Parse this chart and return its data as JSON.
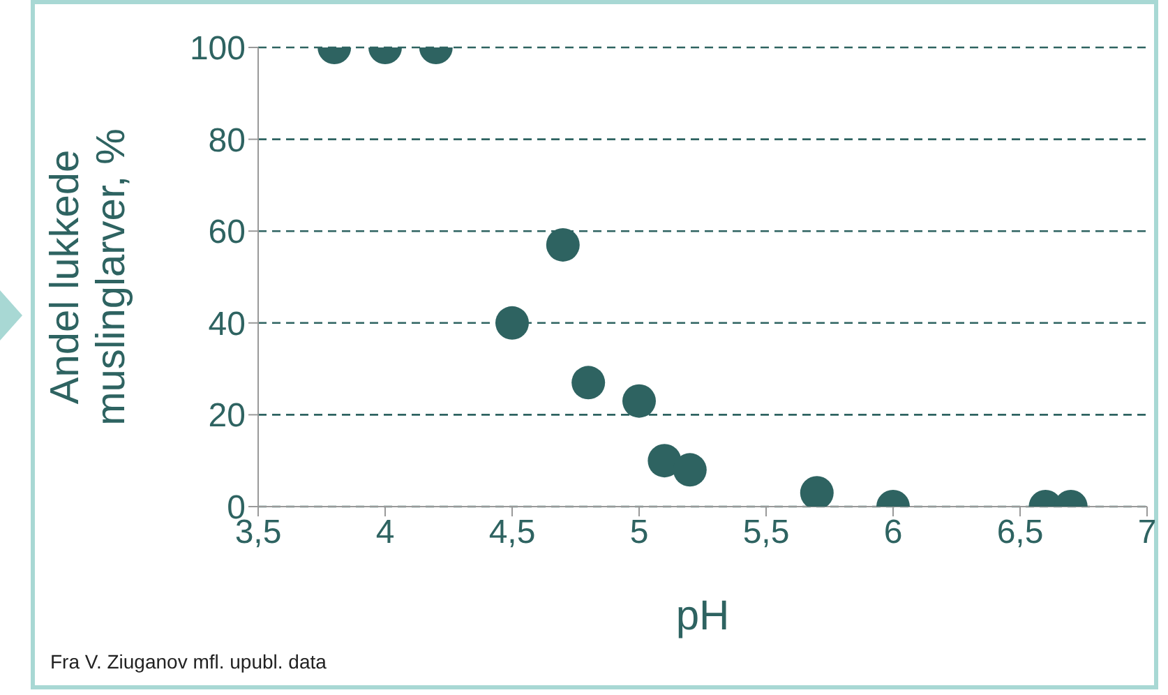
{
  "chart_data": {
    "type": "scatter",
    "xlabel": "pH",
    "ylabel": "Andel lukkede muslinglarver, %",
    "annotations": [
      "Fra V. Ziuganov mfl. upubl. data"
    ],
    "x": [
      3.8,
      4,
      4.2,
      4.5,
      4.7,
      4.8,
      5,
      5.1,
      5.2,
      5.7,
      6,
      6.6,
      6.7
    ],
    "series": [
      {
        "color": "#2e6361",
        "values": [
          100,
          100,
          100,
          40,
          57,
          27,
          23,
          10,
          8,
          3,
          0,
          0,
          0
        ]
      }
    ],
    "xlim": [
      3.5,
      7
    ],
    "xticks": [
      {
        "value": 3.5,
        "label": "3,5"
      },
      4,
      {
        "value": 4.5,
        "label": "4,5"
      },
      5,
      {
        "value": 5.5,
        "label": "5,5"
      },
      6,
      {
        "value": 6.5,
        "label": "6,5"
      },
      7
    ],
    "ylim": [
      0,
      100
    ],
    "yticks": [
      0,
      20,
      40,
      60,
      80,
      100
    ],
    "grid": "y",
    "marker": "circle",
    "legend": false
  }
}
